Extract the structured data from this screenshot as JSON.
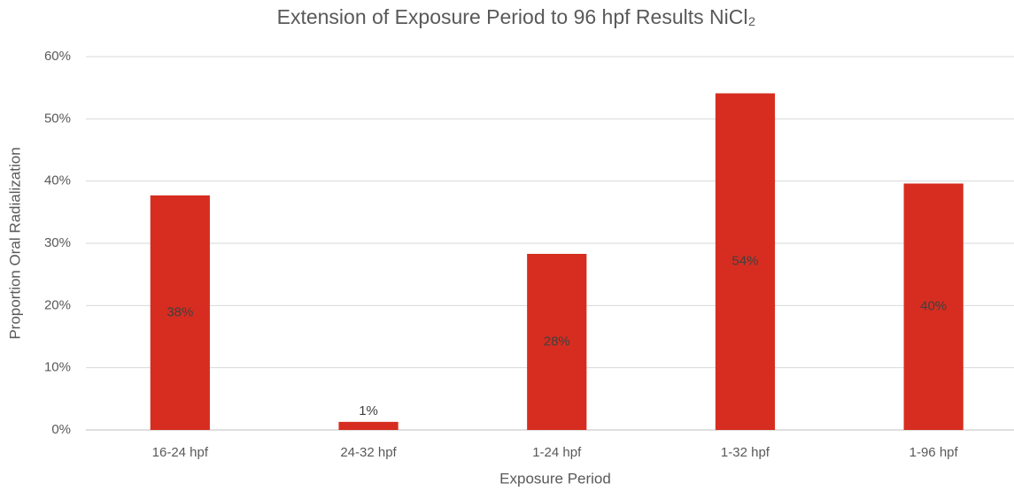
{
  "chart_data": {
    "type": "bar",
    "title": "Extension of Exposure Period to 96 hpf Results NiCl₂",
    "x_label": "Exposure Period",
    "y_label": "Proportion Oral Radialization",
    "categories": [
      "16-24 hpf",
      "24-32 hpf",
      "1-24 hpf",
      "1-32 hpf",
      "1-96 hpf"
    ],
    "values": [
      37.7,
      1.3,
      28.3,
      54.1,
      39.6
    ],
    "value_labels": [
      "38%",
      "1%",
      "28%",
      "54%",
      "40%"
    ],
    "color": "#d62d20",
    "ylim": [
      0,
      60
    ],
    "yticks": [
      {
        "value": 0,
        "label": "0%"
      },
      {
        "value": 10,
        "label": "10%"
      },
      {
        "value": 20,
        "label": "20%"
      },
      {
        "value": 30,
        "label": "30%"
      },
      {
        "value": 40,
        "label": "40%"
      },
      {
        "value": 50,
        "label": "50%"
      },
      {
        "value": 60,
        "label": "60%"
      }
    ],
    "grid": true
  }
}
